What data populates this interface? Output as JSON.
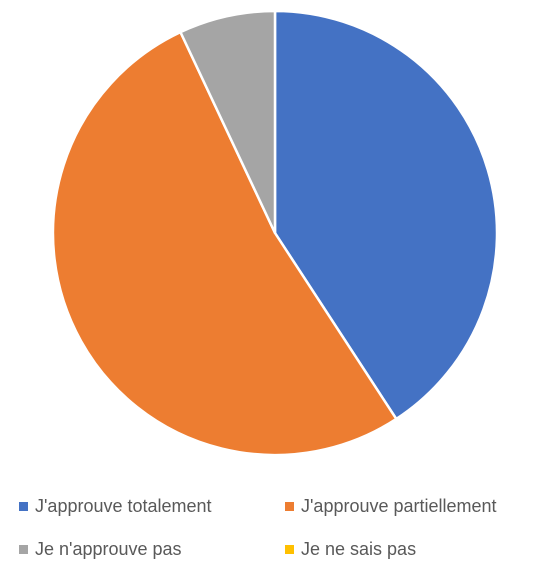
{
  "colors": {
    "series": [
      "#4472C4",
      "#ED7D31",
      "#A5A5A5",
      "#FFC000"
    ],
    "separator": "#ffffff",
    "legend_text": "#595959"
  },
  "chart_data": {
    "type": "pie",
    "title": "",
    "start_angle": "12 o'clock",
    "direction": "clockwise",
    "categories": [
      "J'approuve totalement",
      "J'approuve partiellement",
      "Je n'approuve pas",
      "Je ne sais pas"
    ],
    "values": [
      40.8,
      52.2,
      7.0,
      0.0
    ],
    "value_unit": "%",
    "legend_position": "bottom",
    "legend": [
      {
        "label": "J'approuve totalement",
        "color": "#4472C4"
      },
      {
        "label": "J'approuve partiellement",
        "color": "#ED7D31"
      },
      {
        "label": "Je n'approuve pas",
        "color": "#A5A5A5"
      },
      {
        "label": "Je ne sais pas",
        "color": "#FFC000"
      }
    ]
  }
}
